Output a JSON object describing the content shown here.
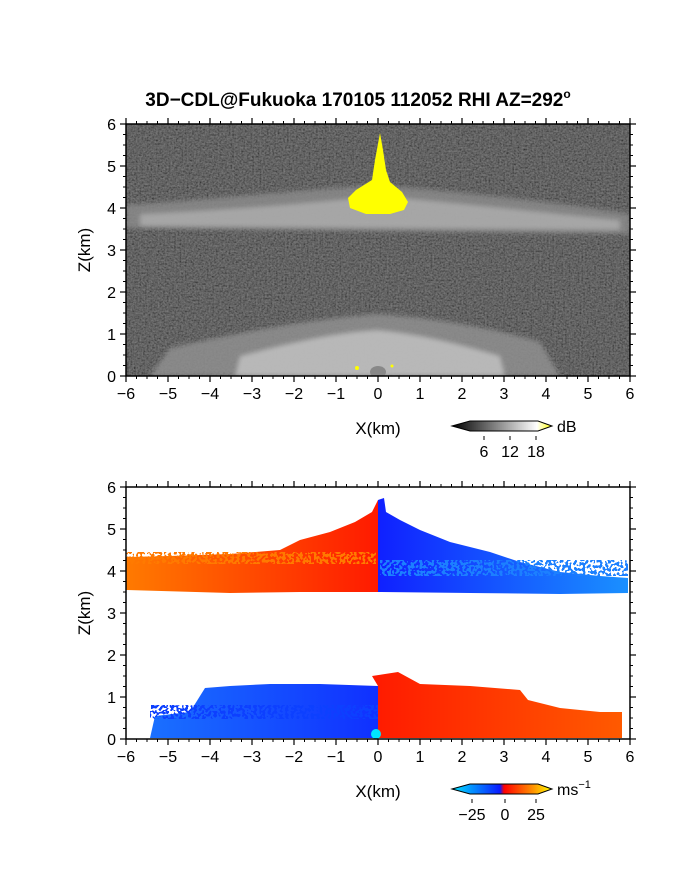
{
  "chart_data": [
    {
      "type": "heatmap",
      "title": "3D−CDL@Fukuoka 170105 112052 RHI AZ=292",
      "title_superscript": "o",
      "xlabel": "X(km)",
      "ylabel": "Z(km)",
      "xlim": [
        -6,
        6
      ],
      "ylim": [
        0,
        6
      ],
      "xticks": [
        "−6",
        "−5",
        "−4",
        "−3",
        "−2",
        "−1",
        "0",
        "1",
        "2",
        "3",
        "4",
        "5",
        "6"
      ],
      "yticks": [
        "0",
        "1",
        "2",
        "3",
        "4",
        "5",
        "6"
      ],
      "quantity": "signal intensity (dB), grayscale; saturated values shown yellow",
      "features": [
        {
          "name": "upper cloud layer",
          "z_range": [
            3.5,
            4.4
          ],
          "x_range": [
            -6,
            6
          ]
        },
        {
          "name": "saturated echo",
          "z_range": [
            4.0,
            5.7
          ],
          "x_range": [
            -0.6,
            0.6
          ]
        },
        {
          "name": "lower layer",
          "z_range": [
            0,
            1.3
          ],
          "x_range": [
            -5.5,
            4.5
          ]
        }
      ],
      "colorbar": {
        "unit": "dB",
        "tick_labels": [
          "6",
          "12",
          "18"
        ],
        "colors": [
          "#000000",
          "#ffffff",
          "#ffff00"
        ]
      }
    },
    {
      "type": "heatmap",
      "xlabel": "X(km)",
      "ylabel": "Z(km)",
      "xlim": [
        -6,
        6
      ],
      "ylim": [
        0,
        6
      ],
      "xticks": [
        "−6",
        "−5",
        "−4",
        "−3",
        "−2",
        "−1",
        "0",
        "1",
        "2",
        "3",
        "4",
        "5",
        "6"
      ],
      "yticks": [
        "0",
        "1",
        "2",
        "3",
        "4",
        "5",
        "6"
      ],
      "quantity": "Doppler velocity (m/s)",
      "features": [
        {
          "name": "upper layer, x<0",
          "z_range": [
            3.5,
            5.6
          ],
          "x_range": [
            -6,
            0
          ],
          "velocity_sign": "positive"
        },
        {
          "name": "upper layer, x>0",
          "z_range": [
            3.5,
            5.6
          ],
          "x_range": [
            0,
            6
          ],
          "velocity_sign": "negative"
        },
        {
          "name": "lower layer, x<0",
          "z_range": [
            0,
            1.4
          ],
          "x_range": [
            -5.5,
            0
          ],
          "velocity_sign": "negative"
        },
        {
          "name": "lower layer, x>0",
          "z_range": [
            0,
            1.5
          ],
          "x_range": [
            0,
            5.9
          ],
          "velocity_sign": "positive"
        }
      ],
      "colorbar": {
        "unit": "ms",
        "unit_superscript": "−1",
        "tick_labels": [
          "−25",
          "0",
          "25"
        ],
        "colors": [
          "#00e5ff",
          "#0a1aff",
          "#ff0000",
          "#ffff00"
        ]
      }
    }
  ]
}
